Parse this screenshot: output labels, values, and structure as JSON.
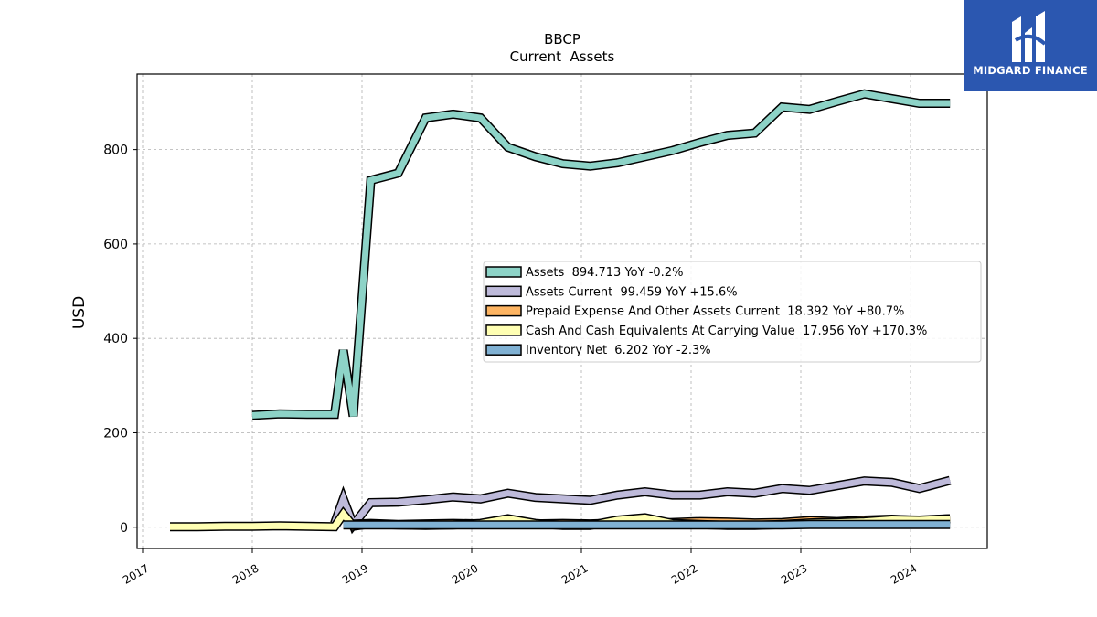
{
  "chart_data": {
    "type": "area",
    "title": "BBCP",
    "subtitle": "Current  Assets",
    "ylabel": "USD",
    "xlabel": "",
    "xlim": [
      2016.95,
      2024.7
    ],
    "ylim": [
      -45,
      960
    ],
    "x_ticks": [
      "2017",
      "2018",
      "2019",
      "2020",
      "2021",
      "2022",
      "2023",
      "2024"
    ],
    "y_ticks": [
      0,
      200,
      400,
      600,
      800
    ],
    "grid": true,
    "legend_position": "center-right",
    "series": [
      {
        "name": "Assets  894.713 YoY -0.2%",
        "color": "#8dd3c7",
        "x": [
          2018.0,
          2018.25,
          2018.5,
          2018.75,
          2018.83,
          2018.92,
          2019.08,
          2019.33,
          2019.58,
          2019.83,
          2020.08,
          2020.33,
          2020.58,
          2020.83,
          2021.08,
          2021.33,
          2021.58,
          2021.83,
          2022.08,
          2022.33,
          2022.58,
          2022.83,
          2023.08,
          2023.33,
          2023.58,
          2023.83,
          2024.08,
          2024.36
        ],
        "y": [
          237,
          240,
          239,
          239,
          375,
          235,
          735,
          750,
          867,
          875,
          867,
          805,
          785,
          770,
          765,
          772,
          785,
          798,
          815,
          830,
          835,
          890,
          885,
          902,
          918,
          908,
          898,
          898
        ]
      },
      {
        "name": "Assets Current  99.459 YoY +15.6%",
        "color": "#bebada",
        "x": [
          2018.75,
          2018.83,
          2018.92,
          2019.08,
          2019.33,
          2019.58,
          2019.83,
          2020.08,
          2020.33,
          2020.58,
          2020.83,
          2021.08,
          2021.33,
          2021.58,
          2021.83,
          2022.08,
          2022.33,
          2022.58,
          2022.83,
          2023.08,
          2023.33,
          2023.58,
          2023.83,
          2024.08,
          2024.36
        ],
        "y": [
          8,
          60,
          5,
          52,
          53,
          58,
          64,
          60,
          72,
          63,
          60,
          57,
          68,
          75,
          68,
          68,
          75,
          72,
          82,
          78,
          88,
          98,
          95,
          82,
          99
        ]
      },
      {
        "name": "Prepaid Expense And Other Assets Current  18.392 YoY +80.7%",
        "color": "#fdb462",
        "x": [
          2018.83,
          2019.08,
          2019.33,
          2019.58,
          2019.83,
          2020.08,
          2020.33,
          2020.58,
          2020.83,
          2021.08,
          2021.33,
          2021.58,
          2021.83,
          2022.08,
          2022.33,
          2022.58,
          2022.83,
          2023.08,
          2023.33,
          2023.58,
          2023.83,
          2024.08,
          2024.36
        ],
        "y": [
          6,
          8,
          6,
          7,
          8,
          7,
          10,
          7,
          8,
          7,
          9,
          8,
          10,
          12,
          11,
          9,
          10,
          14,
          12,
          15,
          17,
          14,
          18
        ]
      },
      {
        "name": "Cash And Cash Equivalents At Carrying Value  17.956 YoY +170.3%",
        "color": "#ffffb3",
        "x": [
          2017.25,
          2017.5,
          2017.75,
          2018.0,
          2018.25,
          2018.5,
          2018.75,
          2018.83,
          2018.92,
          2019.08,
          2019.33,
          2019.58,
          2019.83,
          2020.08,
          2020.33,
          2020.58,
          2020.83,
          2021.08,
          2021.33,
          2021.58,
          2021.83,
          2022.08,
          2022.33,
          2022.58,
          2022.83,
          2023.08,
          2023.33,
          2023.58,
          2023.83,
          2024.08,
          2024.36
        ],
        "y": [
          1,
          1,
          2,
          2,
          3,
          2,
          1,
          28,
          2,
          7,
          5,
          4,
          5,
          8,
          18,
          8,
          4,
          4,
          15,
          20,
          8,
          6,
          4,
          4,
          6,
          9,
          10,
          12,
          16,
          15,
          18
        ]
      },
      {
        "name": "Inventory Net  6.202 YoY -2.3%",
        "color": "#80b1d3",
        "x": [
          2018.83,
          2019.08,
          2019.33,
          2019.58,
          2019.83,
          2020.08,
          2020.33,
          2020.58,
          2020.83,
          2021.08,
          2021.33,
          2021.58,
          2021.83,
          2022.08,
          2022.33,
          2022.58,
          2022.83,
          2023.08,
          2023.33,
          2023.58,
          2023.83,
          2024.08,
          2024.36
        ],
        "y": [
          5,
          5,
          5,
          5,
          5,
          5,
          5,
          5,
          5,
          5,
          5,
          5,
          5,
          5,
          5,
          5,
          5,
          6,
          6,
          6,
          6,
          6,
          6
        ]
      }
    ]
  },
  "logo": {
    "text": "MIDGARD FINANCE",
    "color": "#2b57b0"
  }
}
